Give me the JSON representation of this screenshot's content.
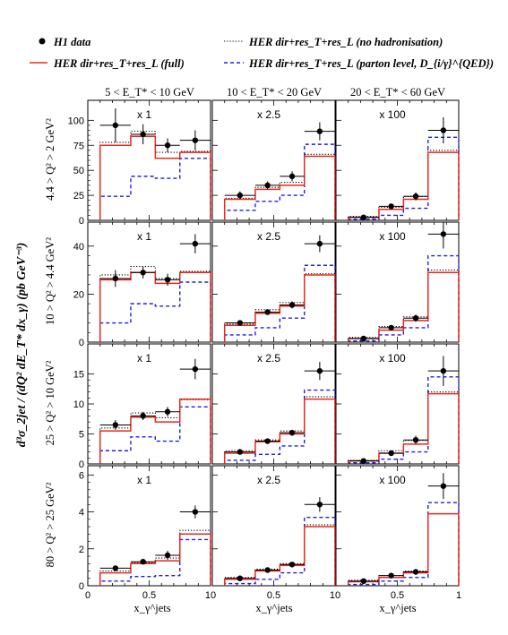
{
  "legend": [
    {
      "label": "H1 data",
      "style": "points",
      "color": "#000000"
    },
    {
      "label": "HER dir+res_T+res_L (no hadronisation)",
      "style": "dotted",
      "color": "#000000"
    },
    {
      "label": "HER dir+res_T+res_L (full)",
      "style": "solid",
      "color": "#e8281e"
    },
    {
      "label": "HER dir+res_T+res_L (parton level, D_{i/γ}^{QED})",
      "style": "dashed",
      "color": "#1f1fe6"
    }
  ],
  "column_headers": [
    "5 < E_T* < 10 GeV",
    "10 < E_T* < 20 GeV",
    "20 < E_T* < 60 GeV"
  ],
  "row_labels": [
    "4.4 > Q² > 2 GeV²",
    "10 > Q² > 4.4 GeV²",
    "25 > Q² > 10 GeV²",
    "80 > Q² > 25 GeV²"
  ],
  "y_axis_label": "d³σ_2jet / (dQ² dE_T* dx_γ)   (pb GeV⁻³)",
  "x_axis_label": "x_γ^jets",
  "x_tick_labels": [
    "0",
    "0.5",
    "1"
  ],
  "chart_data": {
    "type": "step-histogram-grid",
    "bin_edges": [
      0.1,
      0.35,
      0.55,
      0.75,
      1.0
    ],
    "x_ticks": [
      0,
      0.5,
      1
    ],
    "x_range": [
      0,
      1
    ],
    "panels": [
      {
        "row": 0,
        "col": 0,
        "scale": "x 1",
        "ylim": [
          0,
          120
        ],
        "yticks": [
          0,
          25,
          50,
          75,
          100
        ],
        "data": [
          95,
          86,
          75,
          80
        ],
        "data_err": [
          17,
          10,
          7,
          10
        ],
        "no_had": [
          78,
          89,
          68,
          69
        ],
        "full": [
          75,
          84,
          62,
          68
        ],
        "parton": [
          24,
          44,
          42,
          62
        ]
      },
      {
        "row": 0,
        "col": 1,
        "scale": "x 2.5",
        "ylim": [
          0,
          120
        ],
        "yticks": [],
        "data": [
          25,
          35,
          44,
          89
        ],
        "data_err": [
          4,
          4,
          5,
          9
        ],
        "no_had": [
          22,
          33,
          38,
          66
        ],
        "full": [
          21,
          31,
          35,
          64
        ],
        "parton": [
          10,
          19,
          25,
          76
        ]
      },
      {
        "row": 0,
        "col": 2,
        "scale": "x 100",
        "ylim": [
          0,
          120
        ],
        "yticks": [],
        "data": [
          3,
          14,
          24,
          90
        ],
        "data_err": [
          1,
          2,
          4,
          13
        ],
        "no_had": [
          4,
          13,
          24,
          70
        ],
        "full": [
          3,
          11,
          21,
          68
        ],
        "parton": [
          1,
          5,
          12,
          83
        ]
      },
      {
        "row": 1,
        "col": 0,
        "scale": "x 1",
        "ylim": [
          0,
          50
        ],
        "yticks": [
          0,
          20,
          40
        ],
        "data": [
          26.5,
          29,
          26,
          41
        ],
        "data_err": [
          3.5,
          2.5,
          2.5,
          4
        ],
        "no_had": [
          28,
          31.5,
          26.5,
          29.5
        ],
        "full": [
          26,
          29,
          24.5,
          29
        ],
        "parton": [
          8,
          16,
          15,
          25
        ]
      },
      {
        "row": 1,
        "col": 1,
        "scale": "x 2.5",
        "ylim": [
          0,
          50
        ],
        "yticks": [],
        "data": [
          8,
          12.5,
          15.5,
          41
        ],
        "data_err": [
          1,
          1,
          1.5,
          3.5
        ],
        "no_had": [
          7.5,
          13.5,
          16.5,
          28.5
        ],
        "full": [
          7,
          12,
          15,
          28
        ],
        "parton": [
          3,
          6,
          10,
          32
        ]
      },
      {
        "row": 1,
        "col": 2,
        "scale": "x 100",
        "ylim": [
          0,
          50
        ],
        "yticks": [],
        "data": [
          1.5,
          6,
          10,
          45
        ],
        "data_err": [
          0.5,
          1,
          1.5,
          6
        ],
        "no_had": [
          2,
          6.5,
          10.5,
          30
        ],
        "full": [
          1.5,
          5,
          9,
          29
        ],
        "parton": [
          0.5,
          3,
          6,
          36
        ]
      },
      {
        "row": 2,
        "col": 0,
        "scale": "x 1",
        "ylim": [
          0,
          20
        ],
        "yticks": [
          0,
          5,
          10,
          15
        ],
        "data": [
          6.5,
          8,
          8.7,
          15.8
        ],
        "data_err": [
          0.8,
          0.7,
          0.8,
          1.7
        ],
        "no_had": [
          6,
          8.5,
          7.7,
          10.7
        ],
        "full": [
          5.5,
          7.8,
          7,
          10.8
        ],
        "parton": [
          2.2,
          4.5,
          3.8,
          9.5
        ]
      },
      {
        "row": 2,
        "col": 1,
        "scale": "x 2.5",
        "ylim": [
          0,
          20
        ],
        "yticks": [],
        "data": [
          2,
          3.8,
          5.2,
          15.5
        ],
        "data_err": [
          0.3,
          0.4,
          0.5,
          1.5
        ],
        "no_had": [
          2.2,
          4,
          5.5,
          11.2
        ],
        "full": [
          1.8,
          3.7,
          5,
          10.8
        ],
        "parton": [
          0.6,
          1.6,
          3,
          12.3
        ]
      },
      {
        "row": 2,
        "col": 2,
        "scale": "x 100",
        "ylim": [
          0,
          20
        ],
        "yticks": [],
        "data": [
          0.5,
          1.8,
          4,
          15.5
        ],
        "data_err": [
          0.2,
          0.3,
          0.7,
          2.5
        ],
        "no_had": [
          0.6,
          2.2,
          3.9,
          12
        ],
        "full": [
          0.5,
          1.8,
          3.3,
          11.7
        ],
        "parton": [
          0.2,
          0.8,
          2,
          14.5
        ]
      },
      {
        "row": 3,
        "col": 0,
        "scale": "x 1",
        "ylim": [
          0,
          6.5
        ],
        "yticks": [
          0,
          2,
          4,
          6
        ],
        "data": [
          0.95,
          1.3,
          1.65,
          4.0
        ],
        "data_err": [
          0.1,
          0.12,
          0.25,
          0.35
        ],
        "no_had": [
          0.8,
          1.25,
          1.5,
          3.0
        ],
        "full": [
          0.7,
          1.2,
          1.35,
          2.8
        ],
        "parton": [
          0.25,
          0.5,
          0.55,
          2.5
        ]
      },
      {
        "row": 3,
        "col": 1,
        "scale": "x 2.5",
        "ylim": [
          0,
          6.5
        ],
        "yticks": [],
        "data": [
          0.4,
          0.85,
          1.15,
          4.4
        ],
        "data_err": [
          0.07,
          0.08,
          0.12,
          0.4
        ],
        "no_had": [
          0.45,
          0.9,
          1.2,
          3.3
        ],
        "full": [
          0.35,
          0.8,
          1.1,
          3.2
        ],
        "parton": [
          0.12,
          0.35,
          0.7,
          3.7
        ]
      },
      {
        "row": 3,
        "col": 2,
        "scale": "x 100",
        "ylim": [
          0,
          6.5
        ],
        "yticks": [],
        "data": [
          0.25,
          0.55,
          0.75,
          5.4
        ],
        "data_err": [
          0.06,
          0.1,
          0.15,
          0.7
        ],
        "no_had": [
          0.3,
          0.55,
          0.8,
          3.9
        ],
        "full": [
          0.22,
          0.45,
          0.7,
          3.9
        ],
        "parton": [
          0.07,
          0.25,
          0.45,
          4.5
        ]
      }
    ]
  }
}
